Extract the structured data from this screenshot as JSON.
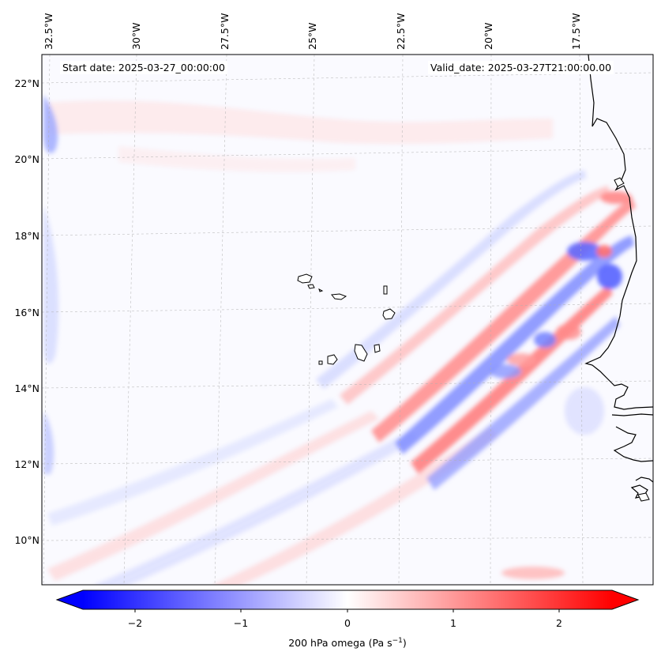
{
  "header": {
    "start_date": "Start date: 2025-03-27_00:00:00",
    "valid_date": "Valid_date: 2025-03-27T21:00:00.00"
  },
  "map": {
    "lon_labels": [
      "32.5°W",
      "30°W",
      "27.5°W",
      "25°W",
      "22.5°W",
      "20°W",
      "17.5°W"
    ],
    "lat_labels": [
      "22°N",
      "20°N",
      "18°N",
      "16°N",
      "14°N",
      "12°N",
      "10°N"
    ],
    "region_features": [
      "Cape Verde islands",
      "West African coastline"
    ]
  },
  "colorbar": {
    "ticks": [
      "−2",
      "−1",
      "0",
      "1",
      "2"
    ],
    "label": "200 hPa omega (Pa s",
    "label_exp": "−1",
    "label_end": ")",
    "min": -2.6,
    "max": 2.6,
    "colors": {
      "neg": "#0000ff",
      "mid": "#ffffff",
      "pos": "#ff0000"
    }
  }
}
